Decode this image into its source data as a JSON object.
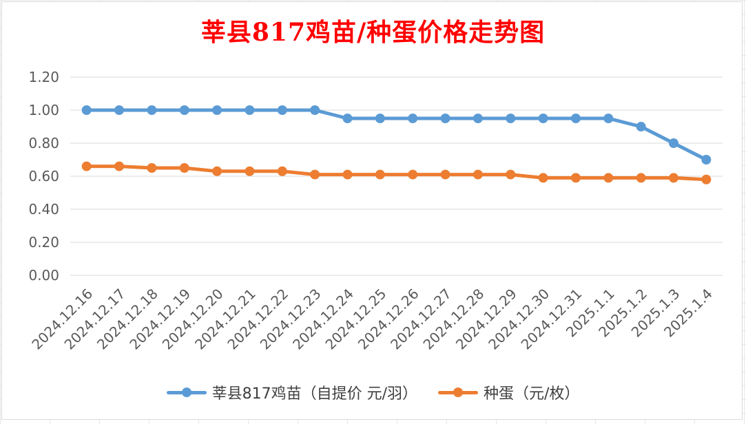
{
  "chart_data": {
    "type": "line",
    "title": "莘县817鸡苗/种蛋价格走势图",
    "categories": [
      "2024.12.16",
      "2024.12.17",
      "2024.12.18",
      "2024.12.19",
      "2024.12.20",
      "2024.12.21",
      "2024.12.22",
      "2024.12.23",
      "2024.12.24",
      "2024.12.25",
      "2024.12.26",
      "2024.12.27",
      "2024.12.28",
      "2024.12.29",
      "2024.12.30",
      "2024.12.31",
      "2025.1.1",
      "2025.1.2",
      "2025.1.3",
      "2025.1.4"
    ],
    "series": [
      {
        "name": "莘县817鸡苗（自提价 元/羽）",
        "color": "#5b9bd5",
        "values": [
          1.0,
          1.0,
          1.0,
          1.0,
          1.0,
          1.0,
          1.0,
          1.0,
          0.95,
          0.95,
          0.95,
          0.95,
          0.95,
          0.95,
          0.95,
          0.95,
          0.95,
          0.9,
          0.8,
          0.7
        ]
      },
      {
        "name": "种蛋（元/枚）",
        "color": "#ed7d31",
        "values": [
          0.66,
          0.66,
          0.65,
          0.65,
          0.63,
          0.63,
          0.63,
          0.61,
          0.61,
          0.61,
          0.61,
          0.61,
          0.61,
          0.61,
          0.59,
          0.59,
          0.59,
          0.59,
          0.59,
          0.58
        ]
      }
    ],
    "y_ticks": [
      "0.00",
      "0.20",
      "0.40",
      "0.60",
      "0.80",
      "1.00",
      "1.20"
    ],
    "ylim": [
      0,
      1.2
    ],
    "grid": true,
    "legend_position": "bottom"
  }
}
